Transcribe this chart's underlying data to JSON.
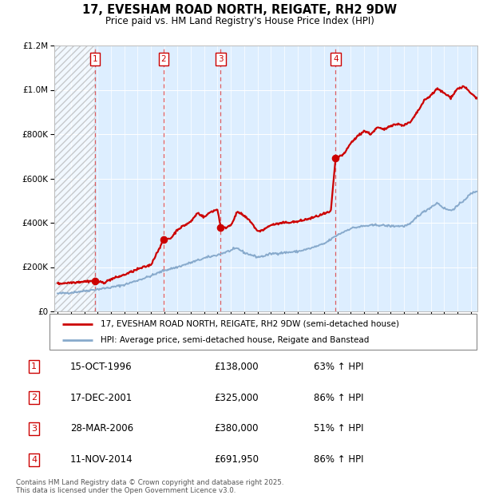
{
  "title": "17, EVESHAM ROAD NORTH, REIGATE, RH2 9DW",
  "subtitle": "Price paid vs. HM Land Registry's House Price Index (HPI)",
  "property_label": "17, EVESHAM ROAD NORTH, REIGATE, RH2 9DW (semi-detached house)",
  "hpi_label": "HPI: Average price, semi-detached house, Reigate and Banstead",
  "footer": "Contains HM Land Registry data © Crown copyright and database right 2025.\nThis data is licensed under the Open Government Licence v3.0.",
  "purchases": [
    {
      "num": 1,
      "date": "15-OCT-1996",
      "price": 138000,
      "hpi_pct": "63%",
      "direction": "↑"
    },
    {
      "num": 2,
      "date": "17-DEC-2001",
      "price": 325000,
      "hpi_pct": "86%",
      "direction": "↑"
    },
    {
      "num": 3,
      "date": "28-MAR-2006",
      "price": 380000,
      "hpi_pct": "51%",
      "direction": "↑"
    },
    {
      "num": 4,
      "date": "11-NOV-2014",
      "price": 691950,
      "hpi_pct": "86%",
      "direction": "↑"
    }
  ],
  "purchase_dates_decimal": [
    1996.79,
    2001.96,
    2006.24,
    2014.86
  ],
  "purchase_prices": [
    138000,
    325000,
    380000,
    691950
  ],
  "property_color": "#cc0000",
  "hpi_color": "#88aacc",
  "vline_color": "#dd4444",
  "background_color": "#ddeeff",
  "ylim": [
    0,
    1200000
  ],
  "xlim_start": 1993.75,
  "xlim_end": 2025.5,
  "hpi_anchors_x": [
    1994,
    1995,
    1996,
    1997,
    1998,
    1999,
    2000,
    2001,
    2002,
    2003,
    2004,
    2005,
    2006,
    2007,
    2007.5,
    2008,
    2008.5,
    2009,
    2009.5,
    2010,
    2011,
    2012,
    2013,
    2014,
    2015,
    2016,
    2017,
    2018,
    2019,
    2020,
    2020.5,
    2021,
    2022,
    2022.5,
    2023,
    2023.5,
    2024,
    2025,
    2025.5
  ],
  "hpi_anchors_y": [
    80000,
    85000,
    92000,
    100000,
    108000,
    120000,
    140000,
    160000,
    185000,
    200000,
    220000,
    240000,
    255000,
    275000,
    285000,
    265000,
    255000,
    245000,
    250000,
    260000,
    265000,
    270000,
    285000,
    305000,
    345000,
    375000,
    385000,
    390000,
    385000,
    385000,
    395000,
    430000,
    470000,
    490000,
    465000,
    455000,
    475000,
    530000,
    545000
  ],
  "prop_anchors_x": [
    1994,
    1995,
    1996,
    1996.5,
    1996.79,
    1997.0,
    1997.5,
    1998,
    1999,
    2000,
    2001.0,
    2001.96,
    2002.0,
    2002.5,
    2003,
    2004,
    2004.5,
    2005.0,
    2005.5,
    2006.0,
    2006.24,
    2006.5,
    2007.0,
    2007.5,
    2008.0,
    2008.5,
    2009.0,
    2009.5,
    2010,
    2011,
    2012,
    2013,
    2014.0,
    2014.5,
    2014.86,
    2015.0,
    2015.5,
    2016,
    2016.5,
    2017,
    2017.5,
    2018,
    2018.5,
    2019,
    2019.5,
    2020,
    2020.5,
    2021,
    2021.5,
    2022,
    2022.5,
    2023,
    2023.5,
    2024,
    2024.5,
    2025,
    2025.5
  ],
  "prop_anchors_y": [
    125000,
    130000,
    135000,
    137000,
    138000,
    133000,
    130000,
    145000,
    165000,
    190000,
    210000,
    325000,
    325000,
    330000,
    370000,
    405000,
    445000,
    425000,
    450000,
    460000,
    380000,
    375000,
    390000,
    450000,
    430000,
    405000,
    360000,
    370000,
    390000,
    400000,
    405000,
    420000,
    440000,
    450000,
    691950,
    695000,
    710000,
    760000,
    790000,
    815000,
    800000,
    830000,
    820000,
    840000,
    845000,
    840000,
    855000,
    900000,
    950000,
    975000,
    1005000,
    985000,
    965000,
    1005000,
    1015000,
    985000,
    960000
  ]
}
